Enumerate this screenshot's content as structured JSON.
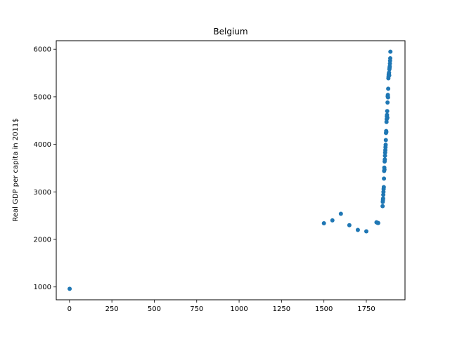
{
  "chart_data": {
    "type": "scatter",
    "title": "Belgium",
    "xlabel": "",
    "ylabel": "Real GDP per capita in 2011$",
    "xlim": [
      -78,
      1978
    ],
    "ylim": [
      730,
      6180
    ],
    "xticks": [
      0,
      250,
      500,
      750,
      1000,
      1250,
      1500,
      1750
    ],
    "yticks": [
      1000,
      2000,
      3000,
      4000,
      5000,
      6000
    ],
    "grid": false,
    "legend": "none",
    "color": "#1f77b4",
    "series": [
      {
        "points": [
          [
            1,
            960
          ],
          [
            1500,
            2340
          ],
          [
            1550,
            2400
          ],
          [
            1600,
            2540
          ],
          [
            1650,
            2300
          ],
          [
            1700,
            2200
          ],
          [
            1750,
            2170
          ],
          [
            1810,
            2360
          ],
          [
            1815,
            2350
          ],
          [
            1820,
            2345
          ],
          [
            1846,
            2700
          ],
          [
            1847,
            2790
          ],
          [
            1848,
            2830
          ],
          [
            1849,
            2860
          ],
          [
            1850,
            2940
          ],
          [
            1851,
            3000
          ],
          [
            1852,
            3060
          ],
          [
            1853,
            3100
          ],
          [
            1854,
            3280
          ],
          [
            1855,
            3440
          ],
          [
            1856,
            3510
          ],
          [
            1857,
            3470
          ],
          [
            1858,
            3640
          ],
          [
            1859,
            3680
          ],
          [
            1860,
            3760
          ],
          [
            1861,
            3830
          ],
          [
            1862,
            3880
          ],
          [
            1863,
            3940
          ],
          [
            1864,
            3990
          ],
          [
            1865,
            4090
          ],
          [
            1866,
            4240
          ],
          [
            1867,
            4280
          ],
          [
            1868,
            4260
          ],
          [
            1869,
            4470
          ],
          [
            1870,
            4530
          ],
          [
            1871,
            4590
          ],
          [
            1872,
            4620
          ],
          [
            1873,
            4700
          ],
          [
            1874,
            4560
          ],
          [
            1875,
            4880
          ],
          [
            1876,
            5010
          ],
          [
            1877,
            5040
          ],
          [
            1878,
            4990
          ],
          [
            1879,
            5170
          ],
          [
            1880,
            5390
          ],
          [
            1881,
            5430
          ],
          [
            1882,
            5470
          ],
          [
            1883,
            5490
          ],
          [
            1884,
            5510
          ],
          [
            1885,
            5450
          ],
          [
            1886,
            5580
          ],
          [
            1887,
            5610
          ],
          [
            1888,
            5640
          ],
          [
            1889,
            5700
          ],
          [
            1890,
            5760
          ],
          [
            1891,
            5810
          ],
          [
            1892,
            5950
          ]
        ]
      }
    ]
  }
}
